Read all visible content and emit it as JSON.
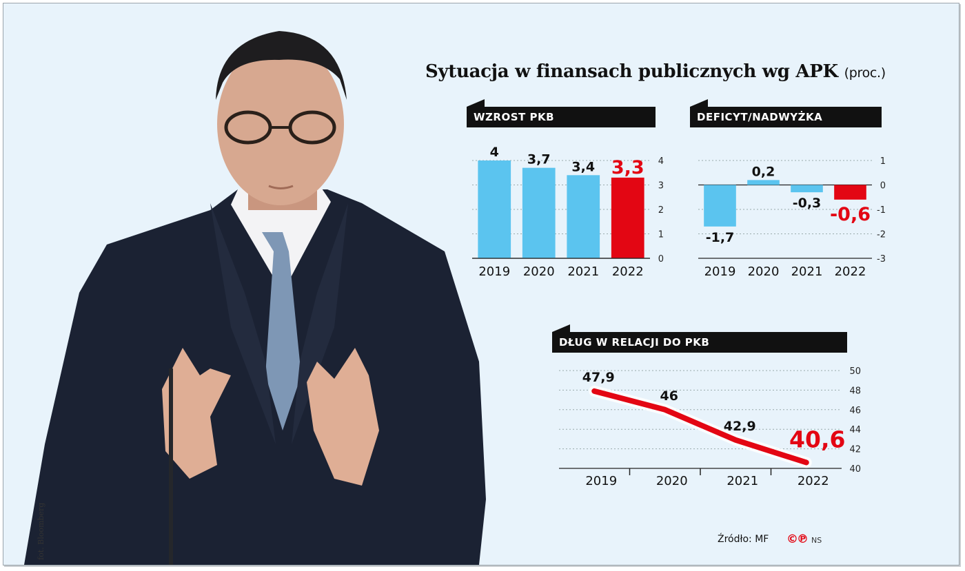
{
  "title": "Sytuacja w finansach publicznych wg APK",
  "title_unit": "(proc.)",
  "photo_credit": "fot. Bloomberg",
  "source": "Źródło: MF",
  "source_logo": "©℗",
  "source_initials": "NS",
  "colors": {
    "blue": "#5bc4ef",
    "red": "#e30613",
    "dark": "#111111"
  },
  "chart_data": [
    {
      "type": "bar",
      "title": "WZROST PKB",
      "categories": [
        "2019",
        "2020",
        "2021",
        "2022"
      ],
      "values": [
        4,
        3.7,
        3.4,
        3.3
      ],
      "labels": [
        "4",
        "3,7",
        "3,4",
        "3,3"
      ],
      "highlight_index": 3,
      "ylim": [
        0,
        4
      ],
      "yticks": [
        0,
        1,
        2,
        3,
        4
      ],
      "grid": true
    },
    {
      "type": "bar",
      "title": "DEFICYT/NADWYŻKA",
      "categories": [
        "2019",
        "2020",
        "2021",
        "2022"
      ],
      "values": [
        -1.7,
        0.2,
        -0.3,
        -0.6
      ],
      "labels": [
        "-1,7",
        "0,2",
        "-0,3",
        "-0,6"
      ],
      "highlight_index": 3,
      "ylim": [
        -3,
        1
      ],
      "yticks": [
        1,
        0,
        -1,
        -2,
        -3
      ],
      "grid": true
    },
    {
      "type": "line",
      "title": "DŁUG W RELACJI DO PKB",
      "categories": [
        "2019",
        "2020",
        "2021",
        "2022"
      ],
      "values": [
        47.9,
        46,
        42.9,
        40.6
      ],
      "labels": [
        "47,9",
        "46",
        "42,9",
        "40,6"
      ],
      "highlight_index": 3,
      "ylim": [
        40,
        50
      ],
      "yticks": [
        40,
        42,
        44,
        46,
        48,
        50
      ],
      "grid": true
    }
  ]
}
